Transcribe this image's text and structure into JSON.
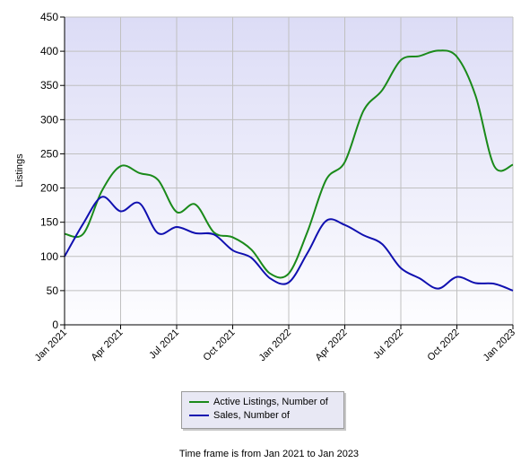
{
  "chart_data": {
    "type": "line",
    "ylabel": "Listings",
    "xlabel": "",
    "ylim": [
      0,
      450
    ],
    "yticks": [
      0,
      50,
      100,
      150,
      200,
      250,
      300,
      350,
      400,
      450
    ],
    "x_ticks": [
      "Jan 2021",
      "Apr 2021",
      "Jul 2021",
      "Oct 2021",
      "Jan 2022",
      "Apr 2022",
      "Jul 2022",
      "Oct 2022",
      "Jan 2023"
    ],
    "x": [
      "2021-01",
      "2021-02",
      "2021-03",
      "2021-04",
      "2021-05",
      "2021-06",
      "2021-07",
      "2021-08",
      "2021-09",
      "2021-10",
      "2021-11",
      "2021-12",
      "2022-01",
      "2022-02",
      "2022-03",
      "2022-04",
      "2022-05",
      "2022-06",
      "2022-07",
      "2022-08",
      "2022-09",
      "2022-10",
      "2022-11",
      "2022-12",
      "2023-01"
    ],
    "grid": true,
    "legend_position": "bottom",
    "series": [
      {
        "name": "Active Listings, Number of",
        "color": "#1a8a1a",
        "values": [
          133,
          133,
          196,
          232,
          222,
          212,
          165,
          176,
          135,
          128,
          110,
          75,
          75,
          136,
          212,
          238,
          313,
          343,
          387,
          393,
          401,
          392,
          335,
          232,
          234
        ]
      },
      {
        "name": "Sales, Number of",
        "color": "#1010b0",
        "values": [
          100,
          148,
          187,
          166,
          178,
          134,
          143,
          134,
          132,
          109,
          98,
          68,
          62,
          105,
          152,
          146,
          131,
          118,
          83,
          68,
          53,
          70,
          61,
          60,
          50
        ]
      }
    ],
    "caption": "Time frame is from Jan 2021 to Jan 2023"
  }
}
